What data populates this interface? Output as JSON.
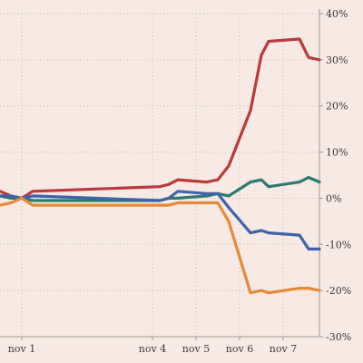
{
  "chart_data": {
    "type": "line",
    "title": "",
    "xlabel": "",
    "ylabel": "",
    "x_range": [
      "2016-10-31T12:00",
      "2016-11-07T20:00"
    ],
    "ylim": [
      -30,
      40
    ],
    "grid": true,
    "x_ticks": [
      {
        "value": "2016-11-01T00:00",
        "label": "nov 1"
      },
      {
        "value": "2016-11-04T00:00",
        "label": "nov 4"
      },
      {
        "value": "2016-11-05T00:00",
        "label": "nov 5"
      },
      {
        "value": "2016-11-06T00:00",
        "label": "nov 6"
      },
      {
        "value": "2016-11-07T00:00",
        "label": "nov 7"
      }
    ],
    "y_ticks": [
      {
        "value": 40,
        "label": "40%"
      },
      {
        "value": 30,
        "label": "30%"
      },
      {
        "value": 20,
        "label": "20%"
      },
      {
        "value": 10,
        "label": "10%"
      },
      {
        "value": 0,
        "label": "0%"
      },
      {
        "value": -10,
        "label": "-10%"
      },
      {
        "value": -20,
        "label": "-20%"
      },
      {
        "value": -30,
        "label": "-30%"
      }
    ],
    "series": [
      {
        "color": "#b83b3b",
        "points": [
          [
            "2016-10-31T12:00",
            1.5
          ],
          [
            "2016-10-31T18:00",
            0.5
          ],
          [
            "2016-11-01T00:00",
            0.0
          ],
          [
            "2016-11-01T06:00",
            1.5
          ],
          [
            "2016-11-04T04:00",
            2.5
          ],
          [
            "2016-11-04T09:00",
            3.0
          ],
          [
            "2016-11-04T14:00",
            4.0
          ],
          [
            "2016-11-05T06:00",
            3.5
          ],
          [
            "2016-11-05T12:00",
            4.0
          ],
          [
            "2016-11-05T18:00",
            7.0
          ],
          [
            "2016-11-06T06:00",
            19.0
          ],
          [
            "2016-11-06T09:00",
            25.0
          ],
          [
            "2016-11-06T12:00",
            31.0
          ],
          [
            "2016-11-06T16:00",
            34.0
          ],
          [
            "2016-11-07T09:00",
            34.5
          ],
          [
            "2016-11-07T14:00",
            30.5
          ],
          [
            "2016-11-07T20:00",
            30.0
          ]
        ]
      },
      {
        "color": "#2a7a70",
        "points": [
          [
            "2016-10-31T12:00",
            0.5
          ],
          [
            "2016-10-31T18:00",
            0.0
          ],
          [
            "2016-11-01T00:00",
            0.0
          ],
          [
            "2016-11-01T06:00",
            -0.5
          ],
          [
            "2016-11-04T04:00",
            -0.5
          ],
          [
            "2016-11-04T09:00",
            0.0
          ],
          [
            "2016-11-04T14:00",
            0.0
          ],
          [
            "2016-11-05T06:00",
            0.5
          ],
          [
            "2016-11-05T12:00",
            1.0
          ],
          [
            "2016-11-05T18:00",
            0.5
          ],
          [
            "2016-11-06T06:00",
            3.5
          ],
          [
            "2016-11-06T12:00",
            4.0
          ],
          [
            "2016-11-06T16:00",
            2.5
          ],
          [
            "2016-11-07T09:00",
            3.5
          ],
          [
            "2016-11-07T14:00",
            4.5
          ],
          [
            "2016-11-07T20:00",
            3.5
          ]
        ]
      },
      {
        "color": "#3f62ad",
        "points": [
          [
            "2016-10-31T12:00",
            0.5
          ],
          [
            "2016-10-31T18:00",
            0.5
          ],
          [
            "2016-11-01T00:00",
            0.0
          ],
          [
            "2016-11-01T06:00",
            0.5
          ],
          [
            "2016-11-04T04:00",
            -0.5
          ],
          [
            "2016-11-04T09:00",
            0.0
          ],
          [
            "2016-11-04T14:00",
            1.5
          ],
          [
            "2016-11-05T06:00",
            1.0
          ],
          [
            "2016-11-05T12:00",
            1.0
          ],
          [
            "2016-11-05T18:00",
            -2.0
          ],
          [
            "2016-11-06T06:00",
            -7.5
          ],
          [
            "2016-11-06T12:00",
            -7.0
          ],
          [
            "2016-11-06T16:00",
            -7.5
          ],
          [
            "2016-11-07T09:00",
            -8.0
          ],
          [
            "2016-11-07T14:00",
            -11.0
          ],
          [
            "2016-11-07T20:00",
            -11.0
          ]
        ]
      },
      {
        "color": "#e58a36",
        "points": [
          [
            "2016-10-31T12:00",
            -1.5
          ],
          [
            "2016-10-31T18:00",
            -1.0
          ],
          [
            "2016-11-01T00:00",
            0.0
          ],
          [
            "2016-11-01T06:00",
            -1.5
          ],
          [
            "2016-11-04T04:00",
            -1.5
          ],
          [
            "2016-11-04T09:00",
            -1.5
          ],
          [
            "2016-11-04T14:00",
            -1.0
          ],
          [
            "2016-11-05T06:00",
            -1.0
          ],
          [
            "2016-11-05T12:00",
            -1.0
          ],
          [
            "2016-11-05T18:00",
            -5.0
          ],
          [
            "2016-11-06T06:00",
            -20.5
          ],
          [
            "2016-11-06T12:00",
            -20.0
          ],
          [
            "2016-11-06T16:00",
            -20.5
          ],
          [
            "2016-11-07T09:00",
            -19.5
          ],
          [
            "2016-11-07T14:00",
            -19.5
          ],
          [
            "2016-11-07T20:00",
            -20.0
          ]
        ]
      }
    ]
  }
}
